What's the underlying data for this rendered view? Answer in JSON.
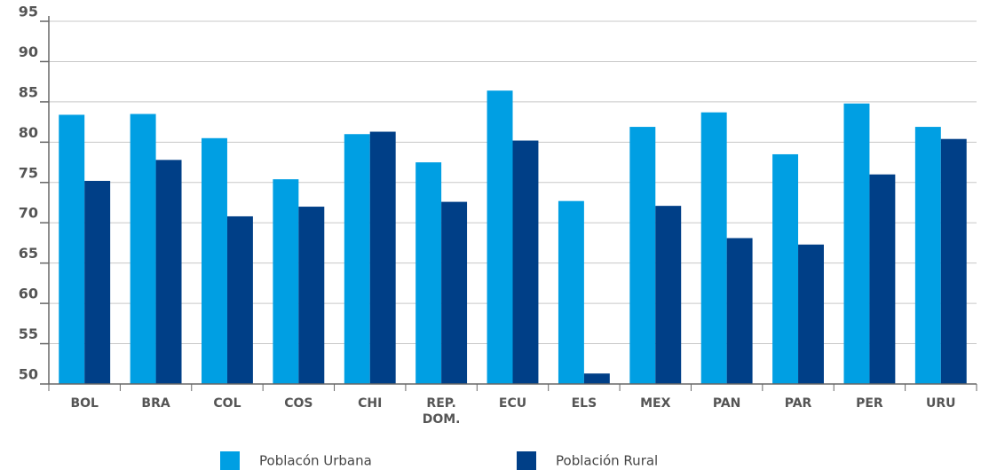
{
  "chart_data": {
    "type": "bar",
    "categories": [
      "BOL",
      "BRA",
      "COL",
      "COS",
      "CHI",
      "REP. DOM.",
      "ECU",
      "ELS",
      "MEX",
      "PAN",
      "PAR",
      "PER",
      "URU"
    ],
    "series": [
      {
        "name": "Poblacón Urbana",
        "color": "#009fe3",
        "values": [
          83.4,
          83.5,
          80.5,
          75.4,
          81.0,
          77.5,
          86.4,
          72.7,
          81.9,
          83.7,
          78.5,
          84.8,
          81.9
        ]
      },
      {
        "name": "Población Rural",
        "color": "#003f87",
        "values": [
          75.2,
          77.8,
          70.8,
          72.0,
          81.3,
          72.6,
          80.2,
          51.3,
          72.1,
          68.1,
          67.3,
          76.0,
          80.4
        ]
      }
    ],
    "ylim": [
      50,
      95
    ],
    "yticks": [
      50,
      55,
      60,
      65,
      70,
      75,
      80,
      85,
      90,
      95
    ],
    "grid": true
  }
}
